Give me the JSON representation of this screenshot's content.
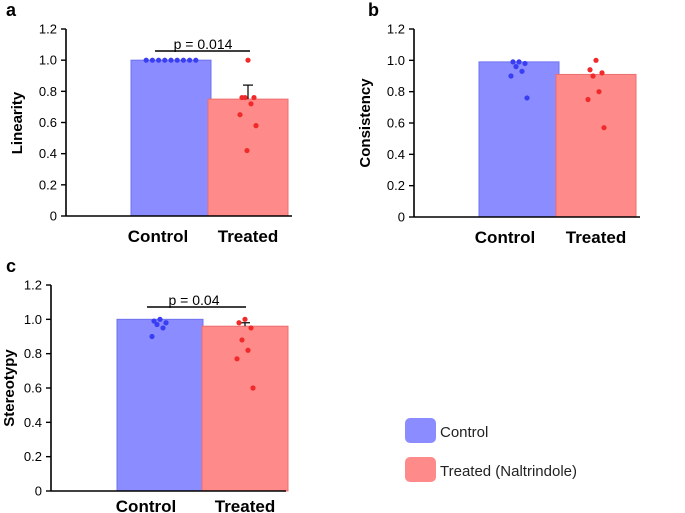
{
  "colors": {
    "control_bar": "#8a8cff",
    "control_edge": "#6f72ee",
    "control_dot": "#3a3ef2",
    "treated_bar": "#ff8a8a",
    "treated_edge": "#ee6e6e",
    "treated_dot": "#f02a2a"
  },
  "legend": {
    "control_label": "Control",
    "treated_label": "Treated (Naltrindole)"
  },
  "chart_data": [
    {
      "panel": "a",
      "type": "bar",
      "ylabel": "Linearity",
      "categories": [
        "Control",
        "Treated"
      ],
      "values": [
        1.0,
        0.75
      ],
      "errors": [
        0.0,
        0.09
      ],
      "points": [
        [
          1,
          1,
          1,
          1,
          1,
          1,
          1,
          1,
          1
        ],
        [
          1.0,
          0.76,
          0.76,
          0.76,
          0.72,
          0.65,
          0.58,
          0.42
        ]
      ],
      "ylim": [
        0,
        1.2
      ],
      "yticks": [
        "0",
        "0.2",
        "0.4",
        "0.6",
        "0.8",
        "1.0",
        "1.2"
      ],
      "annotation": "p = 0.014"
    },
    {
      "panel": "b",
      "type": "bar",
      "ylabel": "Consistency",
      "categories": [
        "Control",
        "Treated"
      ],
      "values": [
        0.99,
        0.91
      ],
      "errors": [
        0.0,
        0.0
      ],
      "points": [
        [
          0.99,
          0.99,
          0.98,
          0.96,
          0.93,
          0.9,
          0.76
        ],
        [
          1.0,
          0.94,
          0.92,
          0.9,
          0.8,
          0.75,
          0.57
        ]
      ],
      "ylim": [
        0,
        1.2
      ],
      "yticks": [
        "0",
        "0.2",
        "0.4",
        "0.6",
        "0.8",
        "1.0",
        "1.2"
      ],
      "annotation": ""
    },
    {
      "panel": "c",
      "type": "bar",
      "ylabel": "Stereotypy",
      "categories": [
        "Control",
        "Treated"
      ],
      "values": [
        1.0,
        0.96
      ],
      "errors": [
        0.0,
        0.02
      ],
      "points": [
        [
          1.0,
          0.99,
          0.98,
          0.97,
          0.95,
          0.9
        ],
        [
          1.0,
          0.98,
          0.95,
          0.88,
          0.82,
          0.77,
          0.6
        ]
      ],
      "ylim": [
        0,
        1.2
      ],
      "yticks": [
        "0",
        "0.2",
        "0.4",
        "0.6",
        "0.8",
        "1.0",
        "1.2"
      ],
      "annotation": "p = 0.04"
    }
  ]
}
